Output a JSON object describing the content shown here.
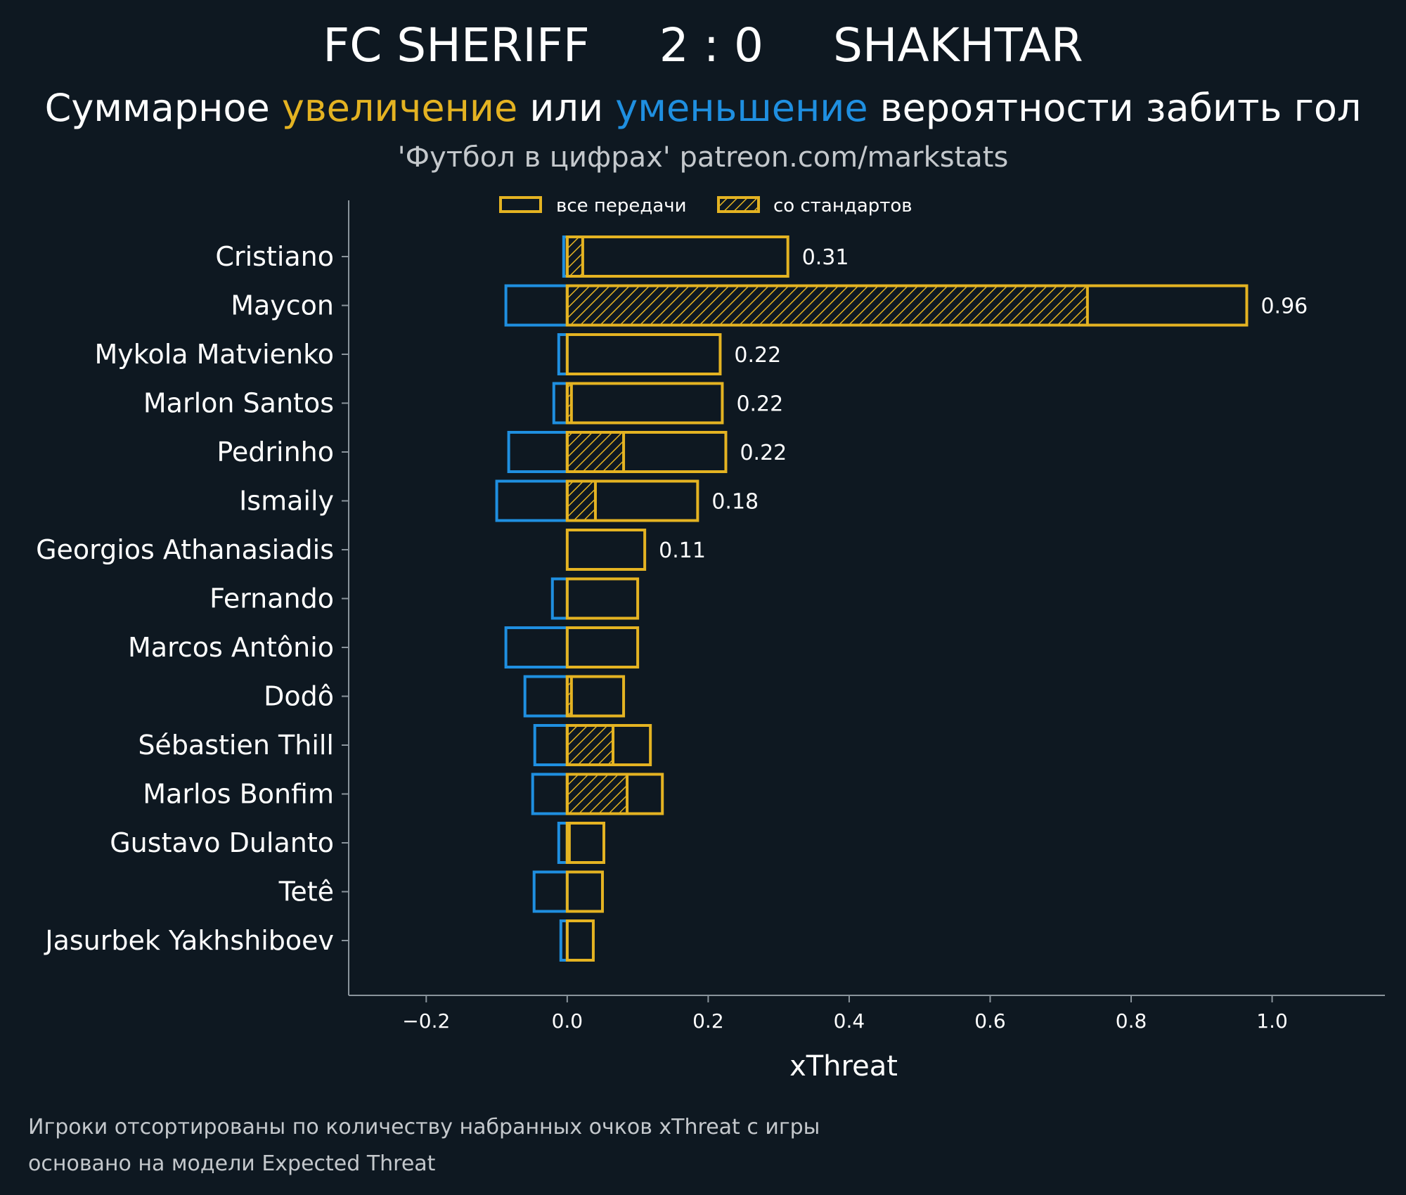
{
  "header": {
    "home_team": "FC SHERIFF",
    "score": "2 : 0",
    "away_team": "SHAKHTAR",
    "subtitle_part1": "Суммарное ",
    "subtitle_increase": "увеличение",
    "subtitle_part2": " или ",
    "subtitle_decrease": "уменьшение",
    "subtitle_part3": " вероятности забить гол",
    "credit": "'Футбол в цифрах' patreon.com/markstats"
  },
  "footer": {
    "note_line1": "Игроки отсортированы по количеству набранных очков xThreat с игры",
    "note_line2": "основано на модели Expected Threat"
  },
  "colors": {
    "background": "#0e1821",
    "positive": "#e4b322",
    "negative": "#1f8fe0",
    "axis": "#8a949c"
  },
  "chart_data": {
    "type": "bar",
    "orientation": "horizontal",
    "xlabel": "xThreat",
    "xlim": [
      -0.31,
      1.16
    ],
    "xticks": [
      -0.2,
      0.0,
      0.2,
      0.4,
      0.6,
      0.8,
      1.0
    ],
    "xtick_labels": [
      "−0.2",
      "0.0",
      "0.2",
      "0.4",
      "0.6",
      "0.8",
      "1.0"
    ],
    "legend": {
      "position": "top",
      "all_passes": "все передачи",
      "set_pieces": "со стандартов"
    },
    "categories": [
      "Cristiano",
      "Maycon",
      "Mykola Matvienko",
      "Marlon Santos",
      "Pedrinho",
      "Ismaily",
      "Georgios Athanasiadis",
      "Fernando",
      "Marcos Antônio",
      "Dodô",
      "Sébastien Thill",
      "Marlos Bonfim",
      "Gustavo Dulanto",
      "Tetê",
      "Jasurbek Yakhshiboev"
    ],
    "series": [
      {
        "name": "все передачи (увеличение)",
        "values": [
          0.313,
          0.964,
          0.217,
          0.22,
          0.225,
          0.185,
          0.11,
          0.1,
          0.1,
          0.08,
          0.118,
          0.135,
          0.052,
          0.05,
          0.037
        ]
      },
      {
        "name": "все передачи (уменьшение)",
        "values": [
          -0.005,
          -0.087,
          -0.012,
          -0.019,
          -0.083,
          -0.1,
          0.0,
          -0.021,
          -0.087,
          -0.06,
          -0.046,
          -0.049,
          -0.012,
          -0.047,
          -0.009
        ]
      },
      {
        "name": "со стандартов",
        "values": [
          0.022,
          0.738,
          0.0,
          0.006,
          0.08,
          0.04,
          0.0,
          0.0,
          0.0,
          0.006,
          0.065,
          0.085,
          0.003,
          0.0,
          0.0
        ]
      }
    ],
    "value_labels": [
      "0.31",
      "0.96",
      "0.22",
      "0.22",
      "0.22",
      "0.18",
      "0.11",
      "",
      "",
      "",
      "",
      "",
      "",
      "",
      ""
    ]
  }
}
